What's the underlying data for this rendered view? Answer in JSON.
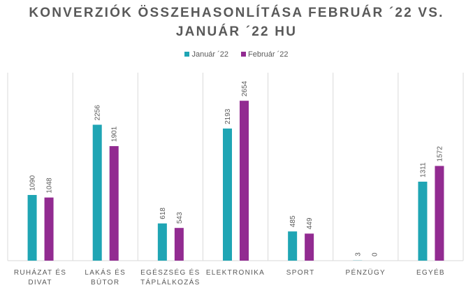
{
  "chart_data": {
    "type": "bar",
    "title_lines": [
      "KONVERZIÓK ÖSSZEHASONLÍTÁSA FEBRUÁR ´22 VS.",
      "JANUÁR ´22 HU"
    ],
    "categories": [
      [
        "RUHÁZAT ÉS",
        "DIVAT"
      ],
      [
        "LAKÁS ÉS",
        "BÚTOR"
      ],
      [
        "EGÉSZSÉG ÉS",
        "TÁPLÁLKOZÁS"
      ],
      [
        "ELEKTRONIKA"
      ],
      [
        "SPORT"
      ],
      [
        "PÉNZÜGY"
      ],
      [
        "EGYÉB"
      ]
    ],
    "series": [
      {
        "name": "Január ´22",
        "color": "#1FA5B4",
        "values": [
          1090,
          2256,
          618,
          2193,
          485,
          3,
          1311
        ]
      },
      {
        "name": "Február  ´22",
        "color": "#922B91",
        "values": [
          1048,
          1901,
          543,
          2654,
          449,
          0,
          1572
        ]
      }
    ],
    "ylim": [
      0,
      3120
    ],
    "grid": "vertical category separators",
    "legend": "top-center",
    "xlabel": "",
    "ylabel": ""
  }
}
